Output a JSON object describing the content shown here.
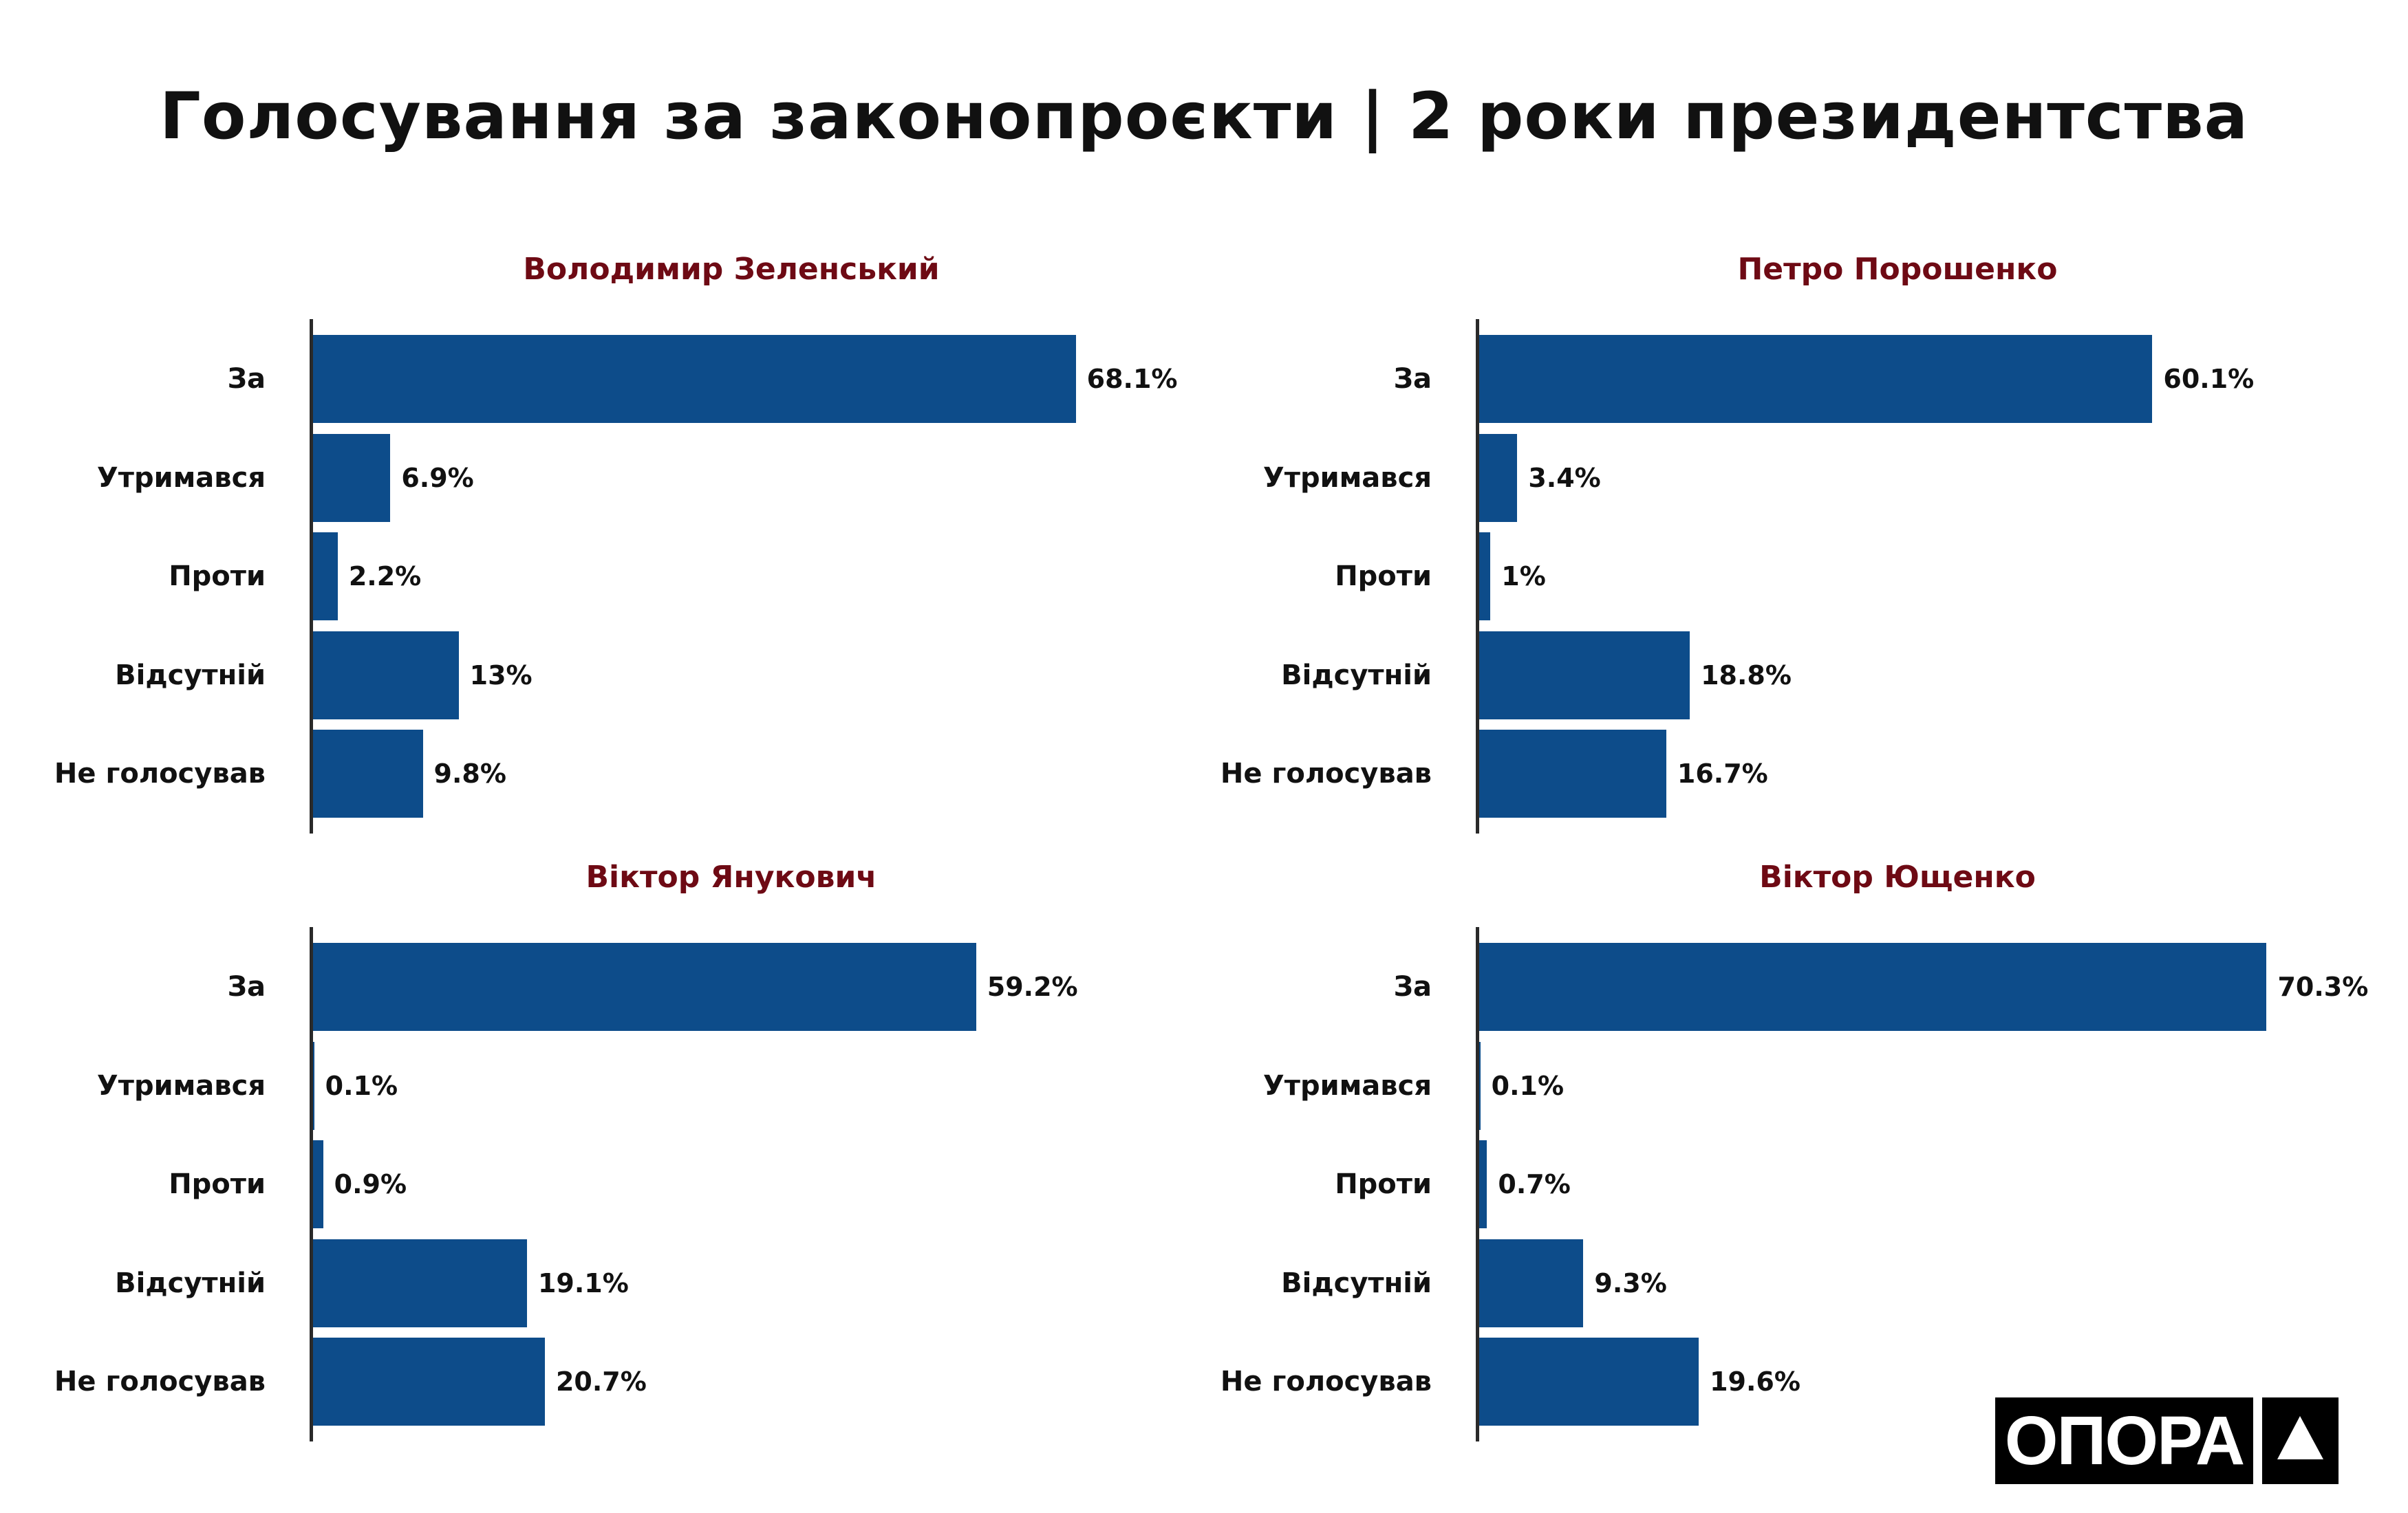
{
  "title": "Голосування за законопроєкти | 2 роки президентства",
  "colors": {
    "bar": "#0d4c8a",
    "panel_title": "#6e0a14",
    "text": "#111111"
  },
  "logo": {
    "text": "ОПОРА",
    "icon": "triangle-icon"
  },
  "chart_data": [
    {
      "type": "bar",
      "orientation": "horizontal",
      "title": "Володимир Зеленський",
      "categories": [
        "За",
        "Утримався",
        "Проти",
        "Відсутній",
        "Не голосував"
      ],
      "values": [
        68.1,
        6.9,
        2.2,
        13,
        9.8
      ],
      "labels": [
        "68.1%",
        "6.9%",
        "2.2%",
        "13%",
        "9.8%"
      ],
      "unit": "%"
    },
    {
      "type": "bar",
      "orientation": "horizontal",
      "title": "Петро Порошенко",
      "categories": [
        "За",
        "Утримався",
        "Проти",
        "Відсутній",
        "Не голосував"
      ],
      "values": [
        60.1,
        3.4,
        1,
        18.8,
        16.7
      ],
      "labels": [
        "60.1%",
        "3.4%",
        "1%",
        "18.8%",
        "16.7%"
      ],
      "unit": "%"
    },
    {
      "type": "bar",
      "orientation": "horizontal",
      "title": "Віктор Янукович",
      "categories": [
        "За",
        "Утримався",
        "Проти",
        "Відсутній",
        "Не голосував"
      ],
      "values": [
        59.2,
        0.1,
        0.9,
        19.1,
        20.7
      ],
      "labels": [
        "59.2%",
        "0.1%",
        "0.9%",
        "19.1%",
        "20.7%"
      ],
      "unit": "%"
    },
    {
      "type": "bar",
      "orientation": "horizontal",
      "title": "Віктор Ющенко",
      "categories": [
        "За",
        "Утримався",
        "Проти",
        "Відсутній",
        "Не голосував"
      ],
      "values": [
        70.3,
        0.1,
        0.7,
        9.3,
        19.6
      ],
      "labels": [
        "70.3%",
        "0.1%",
        "0.7%",
        "9.3%",
        "19.6%"
      ],
      "unit": "%"
    }
  ]
}
